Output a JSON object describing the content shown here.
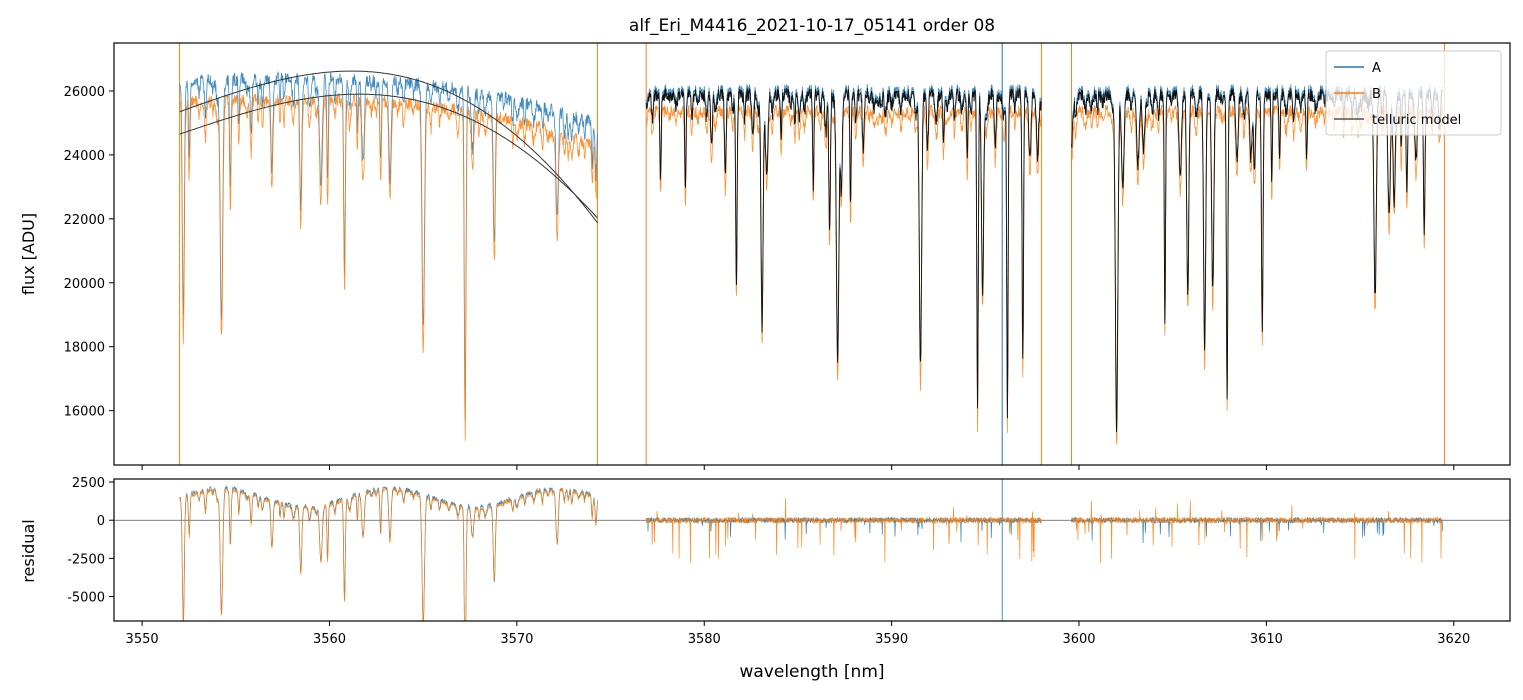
{
  "chart_data": [
    {
      "panel": "top",
      "type": "line",
      "title": "alf_Eri_M4416_2021-10-17_05141  order 08",
      "xlabel": "",
      "ylabel": "flux [ADU]",
      "xlim": [
        3548.5,
        3623.0
      ],
      "ylim": [
        14300,
        27500
      ],
      "yticks": [
        16000,
        18000,
        20000,
        22000,
        24000,
        26000
      ],
      "xticks": [
        3550,
        3560,
        3570,
        3580,
        3590,
        3600,
        3610,
        3620
      ],
      "legend": "top-right",
      "colors": {
        "A": "#1f77b4",
        "B": "#ff7f0e",
        "telluric model": "#333333"
      },
      "series": [
        {
          "name": "A",
          "segments": [
            [
              3552.0,
              3574.3
            ],
            [
              3576.9,
              3598.0
            ],
            [
              3599.6,
              3619.4
            ]
          ],
          "continuum": 26000
        },
        {
          "name": "B",
          "segments": [
            [
              3552.0,
              3574.3
            ],
            [
              3576.9,
              3598.0
            ],
            [
              3599.6,
              3619.4
            ]
          ],
          "continuum": 25600
        },
        {
          "name": "telluric model",
          "segments": [
            [
              3552.0,
              3574.3
            ],
            [
              3576.9,
              3598.0
            ],
            [
              3599.6,
              3619.4
            ]
          ]
        }
      ],
      "vertical_lines": [
        3552.0,
        3574.3,
        3576.9,
        3595.9,
        3598.0,
        3599.6,
        3619.5
      ]
    },
    {
      "panel": "bottom",
      "type": "line",
      "xlabel": "wavelength [nm]",
      "ylabel": "residual",
      "xlim": [
        3548.5,
        3623.0
      ],
      "ylim": [
        -6600,
        2700
      ],
      "yticks": [
        -5000,
        -2500,
        0,
        2500
      ],
      "xticks": [
        3550,
        3560,
        3570,
        3580,
        3590,
        3600,
        3610,
        3620
      ],
      "zero_line": 0
    }
  ]
}
